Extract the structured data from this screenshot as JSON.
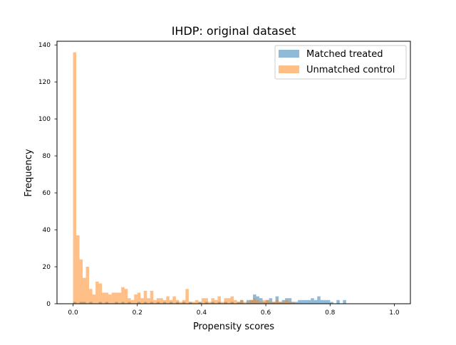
{
  "chart_data": {
    "type": "bar",
    "title": "IHDP: original dataset",
    "xlabel": "Propensity scores",
    "ylabel": "Frequency",
    "xlim": [
      -0.05,
      1.05
    ],
    "ylim": [
      0,
      142
    ],
    "x_ticks": [
      "0.0",
      "0.2",
      "0.4",
      "0.6",
      "0.8",
      "1.0"
    ],
    "y_ticks": [
      "0",
      "20",
      "40",
      "60",
      "80",
      "100",
      "120",
      "140"
    ],
    "bin_width": 0.01,
    "grid": false,
    "legend_position": "top-right",
    "series": [
      {
        "name": "Matched treated",
        "color": "#1f77b4",
        "opacity": 0.5,
        "x": [
          0.0,
          0.02,
          0.03,
          0.05,
          0.08,
          0.1,
          0.13,
          0.15,
          0.17,
          0.2,
          0.22,
          0.24,
          0.26,
          0.28,
          0.3,
          0.32,
          0.34,
          0.36,
          0.39,
          0.41,
          0.43,
          0.45,
          0.47,
          0.49,
          0.51,
          0.52,
          0.54,
          0.55,
          0.56,
          0.57,
          0.58,
          0.59,
          0.6,
          0.61,
          0.62,
          0.63,
          0.64,
          0.65,
          0.66,
          0.67,
          0.68,
          0.69,
          0.7,
          0.71,
          0.72,
          0.73,
          0.74,
          0.75,
          0.76,
          0.77,
          0.78,
          0.79,
          0.8,
          0.82,
          0.84
        ],
        "values": [
          1,
          1,
          1,
          1,
          1,
          1,
          1,
          1,
          1,
          1,
          1,
          1,
          1,
          1,
          1,
          1,
          1,
          1,
          1,
          1,
          1,
          1,
          1,
          1,
          1,
          2,
          2,
          2,
          5,
          4,
          3,
          1,
          2,
          3,
          1,
          4,
          1,
          2,
          3,
          3,
          1,
          1,
          2,
          2,
          2,
          2,
          3,
          2,
          4,
          2,
          2,
          2,
          1,
          2,
          2
        ]
      },
      {
        "name": "Unmatched control",
        "color": "#ff7f0e",
        "opacity": 0.5,
        "x": [
          0.0,
          0.01,
          0.02,
          0.03,
          0.04,
          0.05,
          0.06,
          0.07,
          0.08,
          0.09,
          0.1,
          0.11,
          0.12,
          0.13,
          0.14,
          0.15,
          0.16,
          0.17,
          0.18,
          0.19,
          0.2,
          0.21,
          0.22,
          0.23,
          0.24,
          0.25,
          0.26,
          0.27,
          0.28,
          0.29,
          0.3,
          0.31,
          0.32,
          0.33,
          0.34,
          0.35,
          0.36,
          0.37,
          0.38,
          0.39,
          0.4,
          0.41,
          0.42,
          0.43,
          0.44,
          0.45,
          0.46,
          0.47,
          0.48,
          0.49,
          0.5,
          0.51,
          0.52,
          0.53,
          0.54,
          0.55,
          0.56,
          0.57,
          0.58,
          0.59,
          0.6,
          0.61,
          0.62,
          0.63,
          0.64,
          0.65,
          0.66,
          0.67,
          0.68
        ],
        "values": [
          136,
          37,
          24,
          14,
          20,
          8,
          5,
          12,
          11,
          6,
          6,
          5,
          6,
          6,
          6,
          9,
          8,
          3,
          2,
          5,
          6,
          3,
          7,
          3,
          7,
          2,
          3,
          3,
          2,
          4,
          2,
          4,
          2,
          1,
          2,
          8,
          1,
          1,
          2,
          1,
          3,
          3,
          1,
          3,
          2,
          4,
          1,
          3,
          3,
          4,
          2,
          1,
          2,
          1,
          1,
          2,
          3,
          2,
          1,
          2,
          2,
          1,
          1,
          2,
          1,
          1,
          2,
          1,
          1
        ]
      }
    ]
  }
}
